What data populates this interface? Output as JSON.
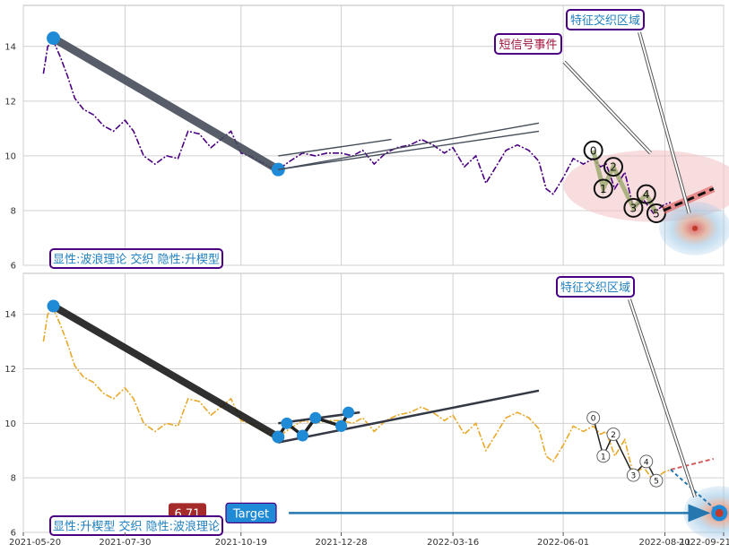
{
  "chart_data": [
    {
      "type": "line",
      "legend_label": "显性:波浪理论 交织 隐性:升楔型",
      "annotation_zone": "特征交织区域",
      "annotation_signal": "短信号事件",
      "ylim": [
        6,
        15.5
      ],
      "yticks": [
        6,
        8,
        10,
        12,
        14
      ],
      "series": [
        {
          "color": "#4b0082",
          "style": "dashdot",
          "points": [
            [
              "2021-06-03",
              13.0
            ],
            [
              "2021-06-06",
              14.0
            ],
            [
              "2021-06-10",
              14.2
            ],
            [
              "2021-06-15",
              13.6
            ],
            [
              "2021-06-20",
              12.9
            ],
            [
              "2021-06-25",
              12.1
            ],
            [
              "2021-07-01",
              11.7
            ],
            [
              "2021-07-08",
              11.5
            ],
            [
              "2021-07-15",
              11.1
            ],
            [
              "2021-07-22",
              10.9
            ],
            [
              "2021-07-30",
              11.3
            ],
            [
              "2021-08-05",
              10.9
            ],
            [
              "2021-08-12",
              10.0
            ],
            [
              "2021-08-20",
              9.7
            ],
            [
              "2021-08-28",
              10.0
            ],
            [
              "2021-09-05",
              9.9
            ],
            [
              "2021-09-12",
              10.9
            ],
            [
              "2021-09-20",
              10.8
            ],
            [
              "2021-09-28",
              10.3
            ],
            [
              "2021-10-05",
              10.6
            ],
            [
              "2021-10-12",
              10.9
            ],
            [
              "2021-10-19",
              10.1
            ],
            [
              "2021-10-25",
              10.0
            ],
            [
              "2021-11-01",
              9.8
            ],
            [
              "2021-11-08",
              9.6
            ],
            [
              "2021-11-14",
              9.5
            ],
            [
              "2021-11-22",
              9.8
            ],
            [
              "2021-12-01",
              10.1
            ],
            [
              "2021-12-10",
              10.0
            ],
            [
              "2021-12-18",
              10.1
            ],
            [
              "2021-12-28",
              10.1
            ],
            [
              "2022-01-05",
              10.0
            ],
            [
              "2022-01-12",
              10.2
            ],
            [
              "2022-01-20",
              9.7
            ],
            [
              "2022-01-28",
              10.1
            ],
            [
              "2022-02-05",
              10.3
            ],
            [
              "2022-02-14",
              10.4
            ],
            [
              "2022-02-22",
              10.6
            ],
            [
              "2022-03-02",
              10.4
            ],
            [
              "2022-03-10",
              10.1
            ],
            [
              "2022-03-16",
              10.3
            ],
            [
              "2022-03-24",
              9.6
            ],
            [
              "2022-04-01",
              10.0
            ],
            [
              "2022-04-08",
              9.0
            ],
            [
              "2022-04-15",
              9.6
            ],
            [
              "2022-04-22",
              10.2
            ],
            [
              "2022-04-30",
              10.4
            ],
            [
              "2022-05-08",
              10.2
            ],
            [
              "2022-05-15",
              9.8
            ],
            [
              "2022-05-20",
              8.8
            ],
            [
              "2022-05-25",
              8.6
            ],
            [
              "2022-06-01",
              9.2
            ],
            [
              "2022-06-08",
              9.9
            ],
            [
              "2022-06-15",
              9.7
            ],
            [
              "2022-06-22",
              9.9
            ],
            [
              "2022-06-27",
              9.6
            ],
            [
              "2022-07-01",
              9.7
            ],
            [
              "2022-07-07",
              8.8
            ],
            [
              "2022-07-14",
              9.4
            ],
            [
              "2022-07-20",
              8.1
            ],
            [
              "2022-07-27",
              8.4
            ],
            [
              "2022-08-03",
              7.9
            ],
            [
              "2022-08-10",
              8.2
            ],
            [
              "2022-08-15",
              8.3
            ]
          ]
        }
      ],
      "trend_line": {
        "color": "#454d5a",
        "points": [
          [
            "2021-06-10",
            14.3
          ],
          [
            "2021-11-14",
            9.5
          ]
        ]
      },
      "wedge_lines": [
        {
          "color": "#454d5a",
          "points": [
            [
              "2021-11-14",
              9.5
            ],
            [
              "2022-05-15",
              11.2
            ]
          ]
        },
        {
          "color": "#454d5a",
          "points": [
            [
              "2021-11-14",
              9.5
            ],
            [
              "2022-05-15",
              10.9
            ]
          ]
        },
        {
          "color": "#454d5a",
          "points": [
            [
              "2021-11-14",
              10.0
            ],
            [
              "2022-02-01",
              10.6
            ]
          ]
        }
      ],
      "wave_points": [
        {
          "label": "0",
          "x": "2022-06-22",
          "y": 10.2
        },
        {
          "label": "1",
          "x": "2022-06-29",
          "y": 8.8
        },
        {
          "label": "2",
          "x": "2022-07-06",
          "y": 9.6
        },
        {
          "label": "3",
          "x": "2022-07-20",
          "y": 8.1
        },
        {
          "label": "4",
          "x": "2022-07-29",
          "y": 8.6
        },
        {
          "label": "5",
          "x": "2022-08-05",
          "y": 7.9
        }
      ],
      "forecast": {
        "points": [
          [
            "2022-08-10",
            8.0
          ],
          [
            "2022-08-25",
            8.4
          ],
          [
            "2022-09-14",
            8.8
          ]
        ]
      },
      "target_point": {
        "x": "2022-09-01",
        "y": 7.35
      }
    },
    {
      "type": "line",
      "legend_label": "显性:升楔型 交织 隐性:波浪理论",
      "annotation_zone": "特征交织区域",
      "target_label": "Target",
      "target_value": "6.71",
      "ylim": [
        6,
        15.5
      ],
      "yticks": [
        6,
        8,
        10,
        12,
        14
      ],
      "series": [
        {
          "color": "#e8a82a",
          "style": "dashdot",
          "points": [
            [
              "2021-06-03",
              13.0
            ],
            [
              "2021-06-06",
              14.0
            ],
            [
              "2021-06-10",
              14.2
            ],
            [
              "2021-06-15",
              13.6
            ],
            [
              "2021-06-20",
              12.9
            ],
            [
              "2021-06-25",
              12.1
            ],
            [
              "2021-07-01",
              11.7
            ],
            [
              "2021-07-08",
              11.5
            ],
            [
              "2021-07-15",
              11.1
            ],
            [
              "2021-07-22",
              10.9
            ],
            [
              "2021-07-30",
              11.3
            ],
            [
              "2021-08-05",
              10.9
            ],
            [
              "2021-08-12",
              10.0
            ],
            [
              "2021-08-20",
              9.7
            ],
            [
              "2021-08-28",
              10.0
            ],
            [
              "2021-09-05",
              9.9
            ],
            [
              "2021-09-12",
              10.9
            ],
            [
              "2021-09-20",
              10.8
            ],
            [
              "2021-09-28",
              10.3
            ],
            [
              "2021-10-05",
              10.6
            ],
            [
              "2021-10-12",
              10.9
            ],
            [
              "2021-10-19",
              10.1
            ],
            [
              "2021-10-25",
              10.0
            ],
            [
              "2021-11-01",
              9.8
            ],
            [
              "2021-11-08",
              9.6
            ],
            [
              "2021-11-14",
              9.5
            ],
            [
              "2021-11-22",
              9.8
            ],
            [
              "2021-12-01",
              10.1
            ],
            [
              "2021-12-10",
              10.0
            ],
            [
              "2021-12-18",
              10.1
            ],
            [
              "2021-12-28",
              10.1
            ],
            [
              "2022-01-05",
              10.0
            ],
            [
              "2022-01-12",
              10.2
            ],
            [
              "2022-01-20",
              9.7
            ],
            [
              "2022-01-28",
              10.1
            ],
            [
              "2022-02-05",
              10.3
            ],
            [
              "2022-02-14",
              10.4
            ],
            [
              "2022-02-22",
              10.6
            ],
            [
              "2022-03-02",
              10.4
            ],
            [
              "2022-03-10",
              10.1
            ],
            [
              "2022-03-16",
              10.3
            ],
            [
              "2022-03-24",
              9.6
            ],
            [
              "2022-04-01",
              10.0
            ],
            [
              "2022-04-08",
              9.0
            ],
            [
              "2022-04-15",
              9.6
            ],
            [
              "2022-04-22",
              10.2
            ],
            [
              "2022-04-30",
              10.4
            ],
            [
              "2022-05-08",
              10.2
            ],
            [
              "2022-05-15",
              9.8
            ],
            [
              "2022-05-20",
              8.8
            ],
            [
              "2022-05-25",
              8.6
            ],
            [
              "2022-06-01",
              9.2
            ],
            [
              "2022-06-08",
              9.9
            ],
            [
              "2022-06-15",
              9.7
            ],
            [
              "2022-06-22",
              9.9
            ],
            [
              "2022-06-27",
              9.6
            ],
            [
              "2022-07-01",
              9.7
            ],
            [
              "2022-07-07",
              8.8
            ],
            [
              "2022-07-14",
              9.4
            ],
            [
              "2022-07-20",
              8.1
            ],
            [
              "2022-07-27",
              8.4
            ],
            [
              "2022-08-03",
              7.9
            ],
            [
              "2022-08-10",
              8.2
            ],
            [
              "2022-08-15",
              8.3
            ]
          ]
        }
      ],
      "trend_line": {
        "color": "#1a1a1a",
        "points": [
          [
            "2021-06-10",
            14.3
          ],
          [
            "2021-11-14",
            9.5
          ]
        ]
      },
      "wedge_lines": [
        {
          "color": "#333844",
          "points": [
            [
              "2021-11-14",
              9.3
            ],
            [
              "2022-05-15",
              11.2
            ]
          ]
        },
        {
          "color": "#333844",
          "points": [
            [
              "2021-11-14",
              10.0
            ],
            [
              "2022-01-10",
              10.4
            ]
          ]
        }
      ],
      "zigzag_points": [
        [
          "2021-11-14",
          9.5
        ],
        [
          "2021-11-20",
          10.0
        ],
        [
          "2021-12-01",
          9.55
        ],
        [
          "2021-12-10",
          10.2
        ],
        [
          "2021-12-28",
          9.9
        ],
        [
          "2022-01-02",
          10.4
        ]
      ],
      "wave_points": [
        {
          "label": "0",
          "x": "2022-06-22",
          "y": 10.2
        },
        {
          "label": "1",
          "x": "2022-06-29",
          "y": 8.8
        },
        {
          "label": "2",
          "x": "2022-07-06",
          "y": 9.6
        },
        {
          "label": "3",
          "x": "2022-07-20",
          "y": 8.1
        },
        {
          "label": "4",
          "x": "2022-07-29",
          "y": 8.6
        },
        {
          "label": "5",
          "x": "2022-08-05",
          "y": 7.9
        }
      ],
      "forecast": {
        "points": [
          [
            "2022-08-15",
            8.3
          ],
          [
            "2022-09-18",
            6.71
          ]
        ]
      },
      "target_point": {
        "x": "2022-09-18",
        "y": 6.71
      }
    }
  ],
  "x_axis": {
    "xlim": [
      "2021-05-20",
      "2022-09-21"
    ],
    "ticks": [
      "2021-05-20",
      "2021-07-30",
      "2021-10-19",
      "2021-12-28",
      "2022-03-16",
      "2022-06-01",
      "2022-08-11",
      "2022-09-21"
    ]
  },
  "colors": {
    "marker_blue": "#1f8ad6",
    "accent_red": "#a52a2a",
    "label_text": "#1f7fbf",
    "label_border": "#4b0082",
    "signal_text": "#a0143c"
  }
}
